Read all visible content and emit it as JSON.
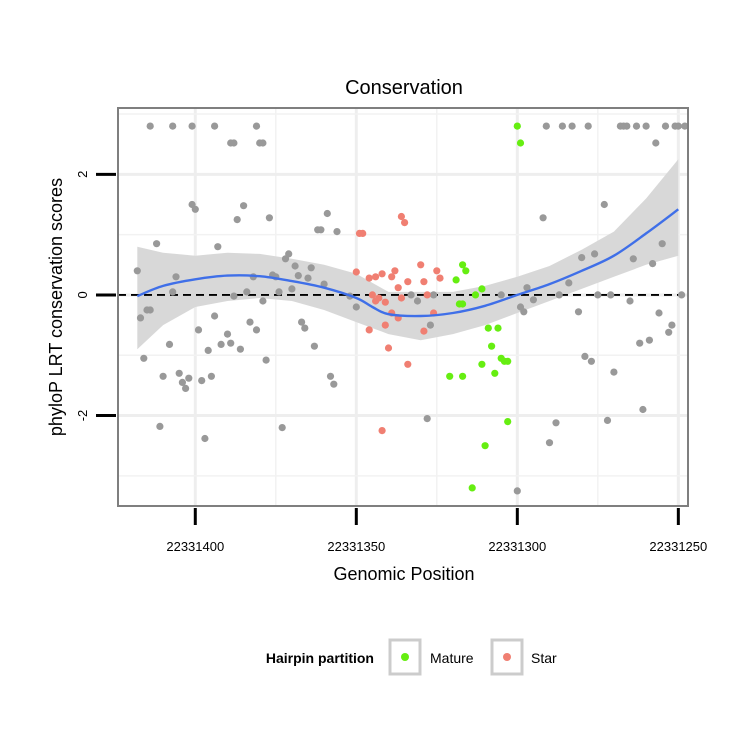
{
  "chart_data": {
    "type": "scatter",
    "title": "Conservation",
    "xlabel": "Genomic Position",
    "ylabel": "phyloP LRT conservation scores",
    "x_reversed": true,
    "xlim": [
      22331424,
      22331247
    ],
    "ylim": [
      -3.5,
      3.1
    ],
    "xticks": [
      22331400,
      22331350,
      22331300,
      22331250
    ],
    "yticks": [
      -2,
      0,
      2
    ],
    "reference_line": {
      "y": 0,
      "style": "dashed"
    },
    "legend": {
      "title": "Hairpin partition",
      "position": "bottom",
      "entries": [
        {
          "name": "Mature",
          "color": "#66ee11"
        },
        {
          "name": "Star",
          "color": "#f07f72"
        }
      ]
    },
    "colors": {
      "other": "#999999",
      "mature": "#66ee11",
      "star": "#f07f72",
      "smooth": "#3f6fe8",
      "band": "#d6d6d6"
    },
    "series": [
      {
        "name": "",
        "color": "#999999",
        "points": [
          [
            22331414,
            2.8
          ],
          [
            22331407,
            2.8
          ],
          [
            22331401,
            2.8
          ],
          [
            22331394,
            2.8
          ],
          [
            22331389,
            2.52
          ],
          [
            22331388,
            2.52
          ],
          [
            22331381,
            2.8
          ],
          [
            22331380,
            2.52
          ],
          [
            22331379,
            2.52
          ],
          [
            22331418,
            0.4
          ],
          [
            22331417,
            -0.38
          ],
          [
            22331416,
            -1.05
          ],
          [
            22331415,
            -0.25
          ],
          [
            22331414,
            -0.25
          ],
          [
            22331412,
            0.85
          ],
          [
            22331411,
            -2.18
          ],
          [
            22331410,
            -1.35
          ],
          [
            22331408,
            -0.82
          ],
          [
            22331407,
            0.05
          ],
          [
            22331406,
            0.3
          ],
          [
            22331405,
            -1.3
          ],
          [
            22331404,
            -1.45
          ],
          [
            22331403,
            -1.55
          ],
          [
            22331402,
            -1.38
          ],
          [
            22331401,
            1.5
          ],
          [
            22331400,
            1.42
          ],
          [
            22331399,
            -0.58
          ],
          [
            22331398,
            -1.42
          ],
          [
            22331397,
            -2.38
          ],
          [
            22331396,
            -0.92
          ],
          [
            22331395,
            -1.35
          ],
          [
            22331394,
            -0.35
          ],
          [
            22331393,
            0.8
          ],
          [
            22331392,
            -0.82
          ],
          [
            22331390,
            -0.65
          ],
          [
            22331389,
            -0.8
          ],
          [
            22331388,
            -0.02
          ],
          [
            22331387,
            1.25
          ],
          [
            22331386,
            -0.9
          ],
          [
            22331385,
            1.48
          ],
          [
            22331384,
            0.05
          ],
          [
            22331383,
            -0.45
          ],
          [
            22331382,
            0.3
          ],
          [
            22331381,
            -0.58
          ],
          [
            22331379,
            -0.1
          ],
          [
            22331378,
            -1.08
          ],
          [
            22331377,
            1.28
          ],
          [
            22331376,
            0.33
          ],
          [
            22331375,
            0.3
          ],
          [
            22331374,
            0.05
          ],
          [
            22331373,
            -2.2
          ],
          [
            22331372,
            0.6
          ],
          [
            22331371,
            0.68
          ],
          [
            22331370,
            0.1
          ],
          [
            22331369,
            0.48
          ],
          [
            22331368,
            0.32
          ],
          [
            22331367,
            -0.45
          ],
          [
            22331366,
            -0.55
          ],
          [
            22331365,
            0.28
          ],
          [
            22331364,
            0.45
          ],
          [
            22331363,
            -0.85
          ],
          [
            22331362,
            1.08
          ],
          [
            22331361,
            1.08
          ],
          [
            22331360,
            0.18
          ],
          [
            22331359,
            1.35
          ],
          [
            22331358,
            -1.35
          ],
          [
            22331357,
            -1.48
          ],
          [
            22331356,
            1.05
          ],
          [
            22331352,
            -0.02
          ],
          [
            22331350,
            -0.2
          ],
          [
            22331333,
            0.0
          ],
          [
            22331331,
            -0.1
          ],
          [
            22331328,
            -2.05
          ],
          [
            22331327,
            -0.5
          ],
          [
            22331326,
            0.0
          ],
          [
            22331305,
            0.0
          ],
          [
            22331299,
            -0.2
          ],
          [
            22331298,
            -0.28
          ],
          [
            22331297,
            0.12
          ],
          [
            22331295,
            -0.08
          ],
          [
            22331292,
            1.28
          ],
          [
            22331291,
            2.8
          ],
          [
            22331290,
            -2.45
          ],
          [
            22331288,
            -2.12
          ],
          [
            22331287,
            0.0
          ],
          [
            22331286,
            2.8
          ],
          [
            22331284,
            0.2
          ],
          [
            22331283,
            2.8
          ],
          [
            22331281,
            -0.28
          ],
          [
            22331280,
            0.62
          ],
          [
            22331279,
            -1.02
          ],
          [
            22331278,
            2.8
          ],
          [
            22331277,
            -1.1
          ],
          [
            22331276,
            0.68
          ],
          [
            22331275,
            0.0
          ],
          [
            22331273,
            1.5
          ],
          [
            22331272,
            -2.08
          ],
          [
            22331271,
            0.0
          ],
          [
            22331270,
            -1.28
          ],
          [
            22331268,
            2.8
          ],
          [
            22331267,
            2.8
          ],
          [
            22331266,
            2.8
          ],
          [
            22331265,
            -0.1
          ],
          [
            22331264,
            0.6
          ],
          [
            22331263,
            2.8
          ],
          [
            22331262,
            -0.8
          ],
          [
            22331261,
            -1.9
          ],
          [
            22331260,
            2.8
          ],
          [
            22331259,
            -0.75
          ],
          [
            22331258,
            0.52
          ],
          [
            22331257,
            2.52
          ],
          [
            22331256,
            -0.3
          ],
          [
            22331255,
            0.85
          ],
          [
            22331254,
            2.8
          ],
          [
            22331253,
            -0.62
          ],
          [
            22331252,
            -0.5
          ],
          [
            22331251,
            2.8
          ],
          [
            22331250,
            2.8
          ],
          [
            22331249,
            0.0
          ],
          [
            22331248,
            2.8
          ],
          [
            22331300,
            -3.25
          ]
        ]
      },
      {
        "name": "Mature",
        "color": "#66ee11",
        "points": [
          [
            22331300,
            2.8
          ],
          [
            22331299,
            2.52
          ],
          [
            22331317,
            0.5
          ],
          [
            22331316,
            0.4
          ],
          [
            22331319,
            0.25
          ],
          [
            22331318,
            -0.15
          ],
          [
            22331317,
            -0.15
          ],
          [
            22331313,
            0.0
          ],
          [
            22331311,
            0.1
          ],
          [
            22331309,
            -0.55
          ],
          [
            22331308,
            -0.85
          ],
          [
            22331306,
            -0.55
          ],
          [
            22331305,
            -1.05
          ],
          [
            22331304,
            -1.1
          ],
          [
            22331303,
            -1.1
          ],
          [
            22331307,
            -1.3
          ],
          [
            22331311,
            -1.15
          ],
          [
            22331317,
            -1.35
          ],
          [
            22331321,
            -1.35
          ],
          [
            22331303,
            -2.1
          ],
          [
            22331310,
            -2.5
          ],
          [
            22331314,
            -3.2
          ]
        ]
      },
      {
        "name": "Star",
        "color": "#f07f72",
        "points": [
          [
            22331349,
            1.02
          ],
          [
            22331348,
            1.02
          ],
          [
            22331336,
            1.3
          ],
          [
            22331335,
            1.2
          ],
          [
            22331350,
            0.38
          ],
          [
            22331346,
            0.28
          ],
          [
            22331344,
            0.3
          ],
          [
            22331342,
            0.35
          ],
          [
            22331339,
            0.3
          ],
          [
            22331338,
            0.4
          ],
          [
            22331337,
            0.12
          ],
          [
            22331336,
            -0.05
          ],
          [
            22331334,
            0.22
          ],
          [
            22331330,
            0.5
          ],
          [
            22331329,
            0.22
          ],
          [
            22331328,
            0.0
          ],
          [
            22331325,
            0.4
          ],
          [
            22331324,
            0.28
          ],
          [
            22331345,
            0.0
          ],
          [
            22331343,
            -0.05
          ],
          [
            22331344,
            -0.1
          ],
          [
            22331341,
            -0.12
          ],
          [
            22331339,
            -0.3
          ],
          [
            22331337,
            -0.38
          ],
          [
            22331341,
            -0.5
          ],
          [
            22331346,
            -0.58
          ],
          [
            22331340,
            -0.88
          ],
          [
            22331329,
            -0.6
          ],
          [
            22331326,
            -0.3
          ],
          [
            22331334,
            -1.15
          ],
          [
            22331342,
            -2.25
          ]
        ]
      }
    ],
    "smooth": {
      "x": [
        22331418,
        22331410,
        22331400,
        22331390,
        22331380,
        22331370,
        22331360,
        22331350,
        22331345,
        22331340,
        22331330,
        22331320,
        22331310,
        22331300,
        22331290,
        22331280,
        22331270,
        22331260,
        22331250
      ],
      "y": [
        -0.02,
        0.15,
        0.26,
        0.32,
        0.31,
        0.23,
        0.12,
        -0.05,
        -0.2,
        -0.32,
        -0.35,
        -0.3,
        -0.18,
        0.0,
        0.18,
        0.4,
        0.65,
        1.02,
        1.42
      ],
      "lower": [
        -0.9,
        -0.5,
        -0.2,
        -0.1,
        -0.05,
        -0.1,
        -0.25,
        -0.45,
        -0.55,
        -0.65,
        -0.75,
        -0.65,
        -0.5,
        -0.3,
        -0.1,
        0.1,
        0.3,
        0.5,
        0.65
      ],
      "upper": [
        0.8,
        0.7,
        0.65,
        0.7,
        0.68,
        0.6,
        0.5,
        0.35,
        0.2,
        0.05,
        0.05,
        0.05,
        0.15,
        0.3,
        0.48,
        0.75,
        1.05,
        1.6,
        2.25
      ]
    },
    "grid": true
  }
}
